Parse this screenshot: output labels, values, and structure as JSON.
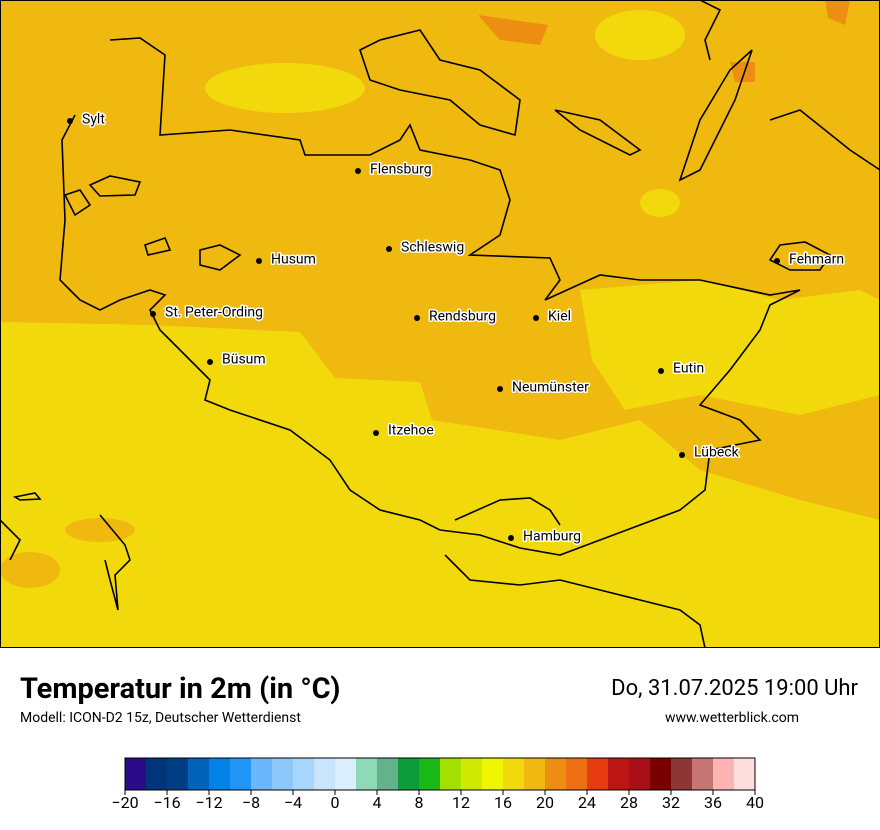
{
  "header": {
    "title": "Temperatur in 2m (in °C)",
    "subtitle": "Modell: ICON-D2 15z, Deutscher Wetterdienst",
    "date": "Do, 31.07.2025 19:00 Uhr",
    "website": "www.wetterblick.com"
  },
  "cities": [
    "Sylt",
    "Flensburg",
    "Schleswig",
    "Husum",
    "Fehmarn",
    "St. Peter-Ording",
    "Rendsburg",
    "Kiel",
    "Büsum",
    "Eutin",
    "Neumünster",
    "Itzehoe",
    "Lübeck",
    "Hamburg"
  ],
  "colorbar": {
    "lim": [
      -20,
      40
    ],
    "ticks": [
      {
        "value": -20,
        "label": "−20"
      },
      {
        "value": -16,
        "label": "−16"
      },
      {
        "value": -12,
        "label": "−12"
      },
      {
        "value": -8,
        "label": "−8"
      },
      {
        "value": -4,
        "label": "−4"
      },
      0,
      4,
      8,
      12,
      16,
      20,
      24,
      28,
      32,
      36,
      40
    ],
    "colors": [
      "#2b0b8a",
      "#00357a",
      "#003f85",
      "#0062b8",
      "#0082e6",
      "#2196f8",
      "#6bb7fb",
      "#8ec8fb",
      "#a9d6fc",
      "#c9e4fd",
      "#dbeefe",
      "#8fd9b8",
      "#64b28c",
      "#0e9b3a",
      "#17b817",
      "#a3e000",
      "#cfe900",
      "#f0f600",
      "#f2d90c",
      "#f0b90f",
      "#ed8d12",
      "#ee7015",
      "#e53b0e",
      "#bd1414",
      "#a90f17",
      "#7a0000",
      "#8e3535",
      "#c77676",
      "#ffb4b4",
      "#ffdede"
    ]
  }
}
